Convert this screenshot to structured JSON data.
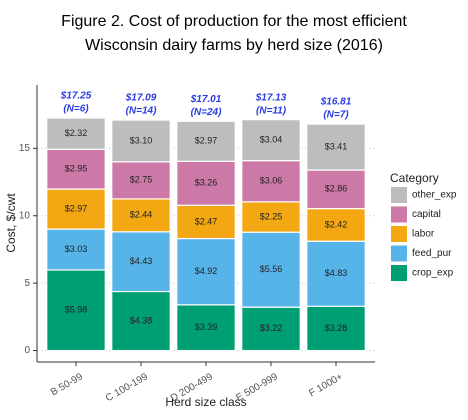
{
  "chart_data": {
    "type": "stacked_bar",
    "title": "Figure 2. Cost of production for the most efficient",
    "subtitle": "Wisconsin dairy farms by herd size (2016)",
    "x_label": "Herd size class",
    "y_label": "Cost, $/cwt",
    "categories": [
      "B 50-99",
      "C 100-199",
      "D 200-499",
      "E 500-999",
      "F 1000+"
    ],
    "series": [
      {
        "name": "crop_exp",
        "color": "#009e73",
        "values": [
          5.98,
          4.38,
          3.39,
          3.22,
          3.28
        ],
        "value_labels": [
          "$5.98",
          "$4.38",
          "$3.39",
          "$3.22",
          "$3.28"
        ]
      },
      {
        "name": "feed_pur",
        "color": "#56b4e9",
        "values": [
          3.03,
          4.43,
          4.92,
          5.56,
          4.83
        ],
        "value_labels": [
          "$3.03",
          "$4.43",
          "$4.92",
          "$5.56",
          "$4.83"
        ]
      },
      {
        "name": "labor",
        "color": "#f3a712",
        "values": [
          2.97,
          2.44,
          2.47,
          2.25,
          2.42
        ],
        "value_labels": [
          "$2.97",
          "$2.44",
          "$2.47",
          "$2.25",
          "$2.42"
        ]
      },
      {
        "name": "capital",
        "color": "#cc79a7",
        "values": [
          2.95,
          2.75,
          3.26,
          3.06,
          2.86
        ],
        "value_labels": [
          "$2.95",
          "$2.75",
          "$3.26",
          "$3.06",
          "$2.86"
        ]
      },
      {
        "name": "other_exp",
        "color": "#bdbdbd",
        "values": [
          2.32,
          3.1,
          2.97,
          3.04,
          3.41
        ],
        "value_labels": [
          "$2.32",
          "$3.10",
          "$2.97",
          "$3.04",
          "$3.41"
        ]
      }
    ],
    "totals": [
      17.25,
      17.09,
      17.01,
      17.13,
      16.81
    ],
    "total_labels": [
      "$17.25",
      "$17.09",
      "$17.01",
      "$17.13",
      "$16.81"
    ],
    "n_labels": [
      "(N=6)",
      "(N=14)",
      "(N=24)",
      "(N=11)",
      "(N=7)"
    ],
    "legend_title": "Category",
    "legend_position": "right",
    "annotation_color": "#2b3de0",
    "ylim": [
      -0.85,
      19.7
    ],
    "yticks": [
      0,
      5,
      10,
      15
    ],
    "grid": true
  }
}
